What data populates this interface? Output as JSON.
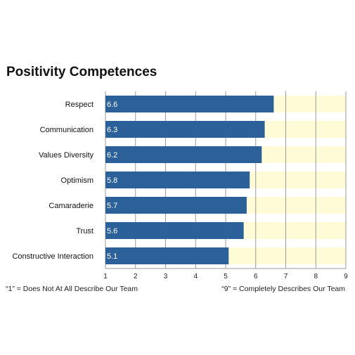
{
  "chart_data": {
    "type": "bar",
    "orientation": "horizontal",
    "title": "Positivity Competences",
    "categories": [
      "Respect",
      "Communication",
      "Values Diversity",
      "Optimism",
      "Camaraderie",
      "Trust",
      "Constructive Interaction"
    ],
    "values": [
      6.6,
      6.3,
      6.2,
      5.8,
      5.7,
      5.6,
      5.1
    ],
    "data_labels": [
      "6.6",
      "6.3",
      "6.2",
      "5.8",
      "5.7",
      "5.6",
      "5.1"
    ],
    "xlim": [
      1,
      9
    ],
    "xticks": [
      "1",
      "2",
      "3",
      "4",
      "5",
      "6",
      "7",
      "8",
      "9"
    ],
    "grid": true,
    "bar_color": "#2b6099",
    "remainder_color": "#fefbd6",
    "scale_notes": {
      "low": "“1” = Does Not At All Describe Our Team",
      "high": "“9” = Completely Describes Our Team"
    }
  }
}
